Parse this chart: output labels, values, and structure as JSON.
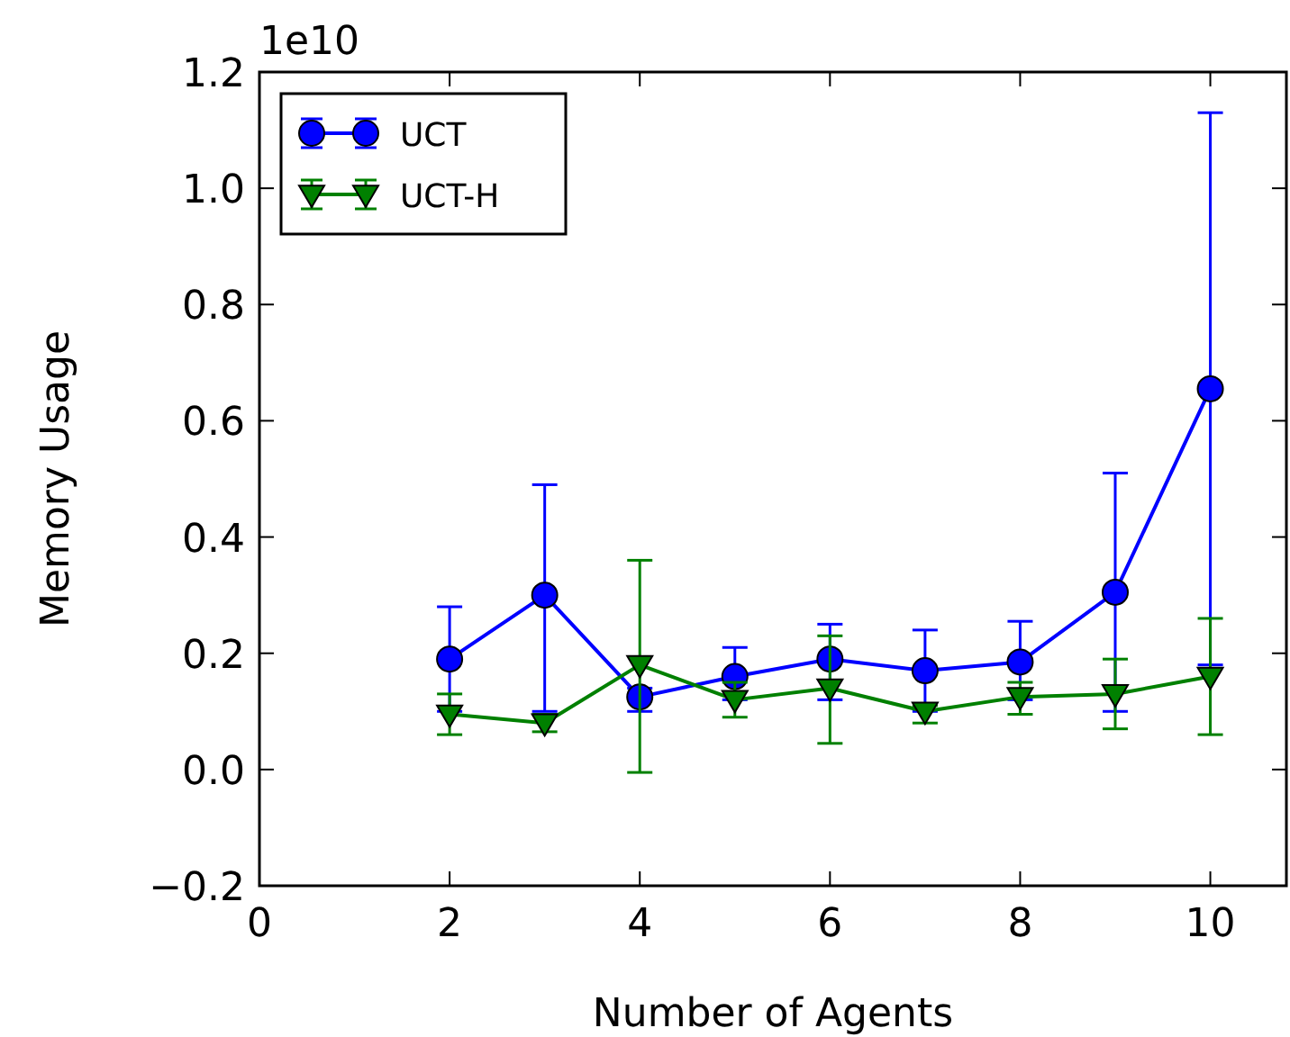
{
  "chart_data": {
    "type": "line",
    "xlabel": "Number of Agents",
    "ylabel": "Memory Usage",
    "annotations": [
      "1e10"
    ],
    "x": [
      2,
      3,
      4,
      5,
      6,
      7,
      8,
      9,
      10
    ],
    "series": [
      {
        "name": "UCT",
        "color": "#0000ff",
        "marker": "circle",
        "values": [
          0.19,
          0.3,
          0.125,
          0.16,
          0.19,
          0.17,
          0.185,
          0.305,
          0.655
        ],
        "errors": [
          [
            0.1,
            0.28
          ],
          [
            0.1,
            0.49
          ],
          [
            0.1,
            0.14
          ],
          [
            0.12,
            0.21
          ],
          [
            0.12,
            0.25
          ],
          [
            0.1,
            0.24
          ],
          [
            0.12,
            0.255
          ],
          [
            0.1,
            0.51
          ],
          [
            0.18,
            1.13
          ]
        ]
      },
      {
        "name": "UCT-H",
        "color": "#008000",
        "marker": "triangle",
        "values": [
          0.095,
          0.08,
          0.18,
          0.12,
          0.14,
          0.1,
          0.125,
          0.13,
          0.16
        ],
        "errors": [
          [
            0.06,
            0.13
          ],
          [
            0.065,
            0.095
          ],
          [
            -0.005,
            0.36
          ],
          [
            0.09,
            0.15
          ],
          [
            0.045,
            0.23
          ],
          [
            0.08,
            0.11
          ],
          [
            0.095,
            0.15
          ],
          [
            0.07,
            0.19
          ],
          [
            0.06,
            0.26
          ]
        ]
      }
    ],
    "xlim": [
      0,
      10.8
    ],
    "xticks": [
      0,
      2,
      4,
      6,
      8,
      10
    ],
    "ylim": [
      -0.2,
      1.2
    ],
    "yticks": [
      {
        "value": -0.2,
        "label": "−0.2"
      },
      {
        "value": 0,
        "label": "0.0"
      },
      {
        "value": 0.2,
        "label": "0.2"
      },
      {
        "value": 0.4,
        "label": "0.4"
      },
      {
        "value": 0.6,
        "label": "0.6"
      },
      {
        "value": 0.8,
        "label": "0.8"
      },
      {
        "value": 1.0,
        "label": "1.0"
      },
      {
        "value": 1.2,
        "label": "1.2"
      }
    ],
    "legend": "top left",
    "grid": false
  }
}
